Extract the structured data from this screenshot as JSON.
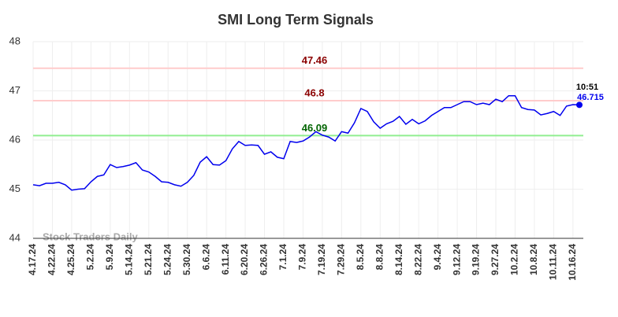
{
  "chart_data": {
    "type": "line",
    "title": "SMI Long Term Signals",
    "watermark": "Stock Traders Daily",
    "annotation_time": "10:51",
    "color": "#0000ee",
    "grid": true,
    "ylim": [
      44,
      48
    ],
    "yticks": [
      44,
      45,
      46,
      47,
      48
    ],
    "categories": [
      "4.17.24",
      null,
      null,
      "4.22.24",
      null,
      null,
      "4.25.24",
      null,
      null,
      "5.2.24",
      null,
      null,
      "5.9.24",
      null,
      null,
      "5.14.24",
      null,
      null,
      "5.21.24",
      null,
      null,
      "5.24.24",
      null,
      null,
      "5.30.24",
      null,
      null,
      "6.6.24",
      null,
      null,
      "6.11.24",
      null,
      null,
      "6.20.24",
      null,
      null,
      "6.26.24",
      null,
      null,
      "7.1.24",
      null,
      null,
      "7.9.24",
      null,
      null,
      "7.19.24",
      null,
      null,
      "7.29.24",
      null,
      null,
      "8.5.24",
      null,
      null,
      "8.8.24",
      null,
      null,
      "8.14.24",
      null,
      null,
      "8.22.24",
      null,
      null,
      "9.4.24",
      null,
      null,
      "9.12.24",
      null,
      null,
      "9.19.24",
      null,
      null,
      "9.27.24",
      null,
      null,
      "10.2.24",
      null,
      null,
      "10.8.24",
      null,
      null,
      "10.11.24",
      null,
      null,
      "10.16.24",
      null
    ],
    "values": [
      45.09,
      45.07,
      45.12,
      45.12,
      45.14,
      45.09,
      44.98,
      45.0,
      45.01,
      45.15,
      45.26,
      45.29,
      45.5,
      45.44,
      45.46,
      45.49,
      45.54,
      45.39,
      45.35,
      45.26,
      45.15,
      45.14,
      45.09,
      45.06,
      45.14,
      45.28,
      45.55,
      45.66,
      45.5,
      45.49,
      45.58,
      45.82,
      45.97,
      45.89,
      45.9,
      45.89,
      45.71,
      45.76,
      45.65,
      45.62,
      45.97,
      45.95,
      45.98,
      46.06,
      46.17,
      46.1,
      46.06,
      45.98,
      46.17,
      46.14,
      46.35,
      46.64,
      46.58,
      46.37,
      46.24,
      46.33,
      46.38,
      46.48,
      46.32,
      46.42,
      46.33,
      46.39,
      46.5,
      46.58,
      46.66,
      46.66,
      46.72,
      46.78,
      46.78,
      46.72,
      46.75,
      46.72,
      46.83,
      46.78,
      46.9,
      46.9,
      46.66,
      46.62,
      46.61,
      46.51,
      46.54,
      46.58,
      46.5,
      46.69,
      46.72,
      46.715
    ],
    "hlines": [
      {
        "value": 47.46,
        "color": "#ffcccc",
        "label_color": "#8b0000"
      },
      {
        "value": 46.8,
        "color": "#ffcccc",
        "label_color": "#8b0000"
      },
      {
        "value": 46.09,
        "color": "#90ee90",
        "label_color": "#006400"
      }
    ]
  }
}
